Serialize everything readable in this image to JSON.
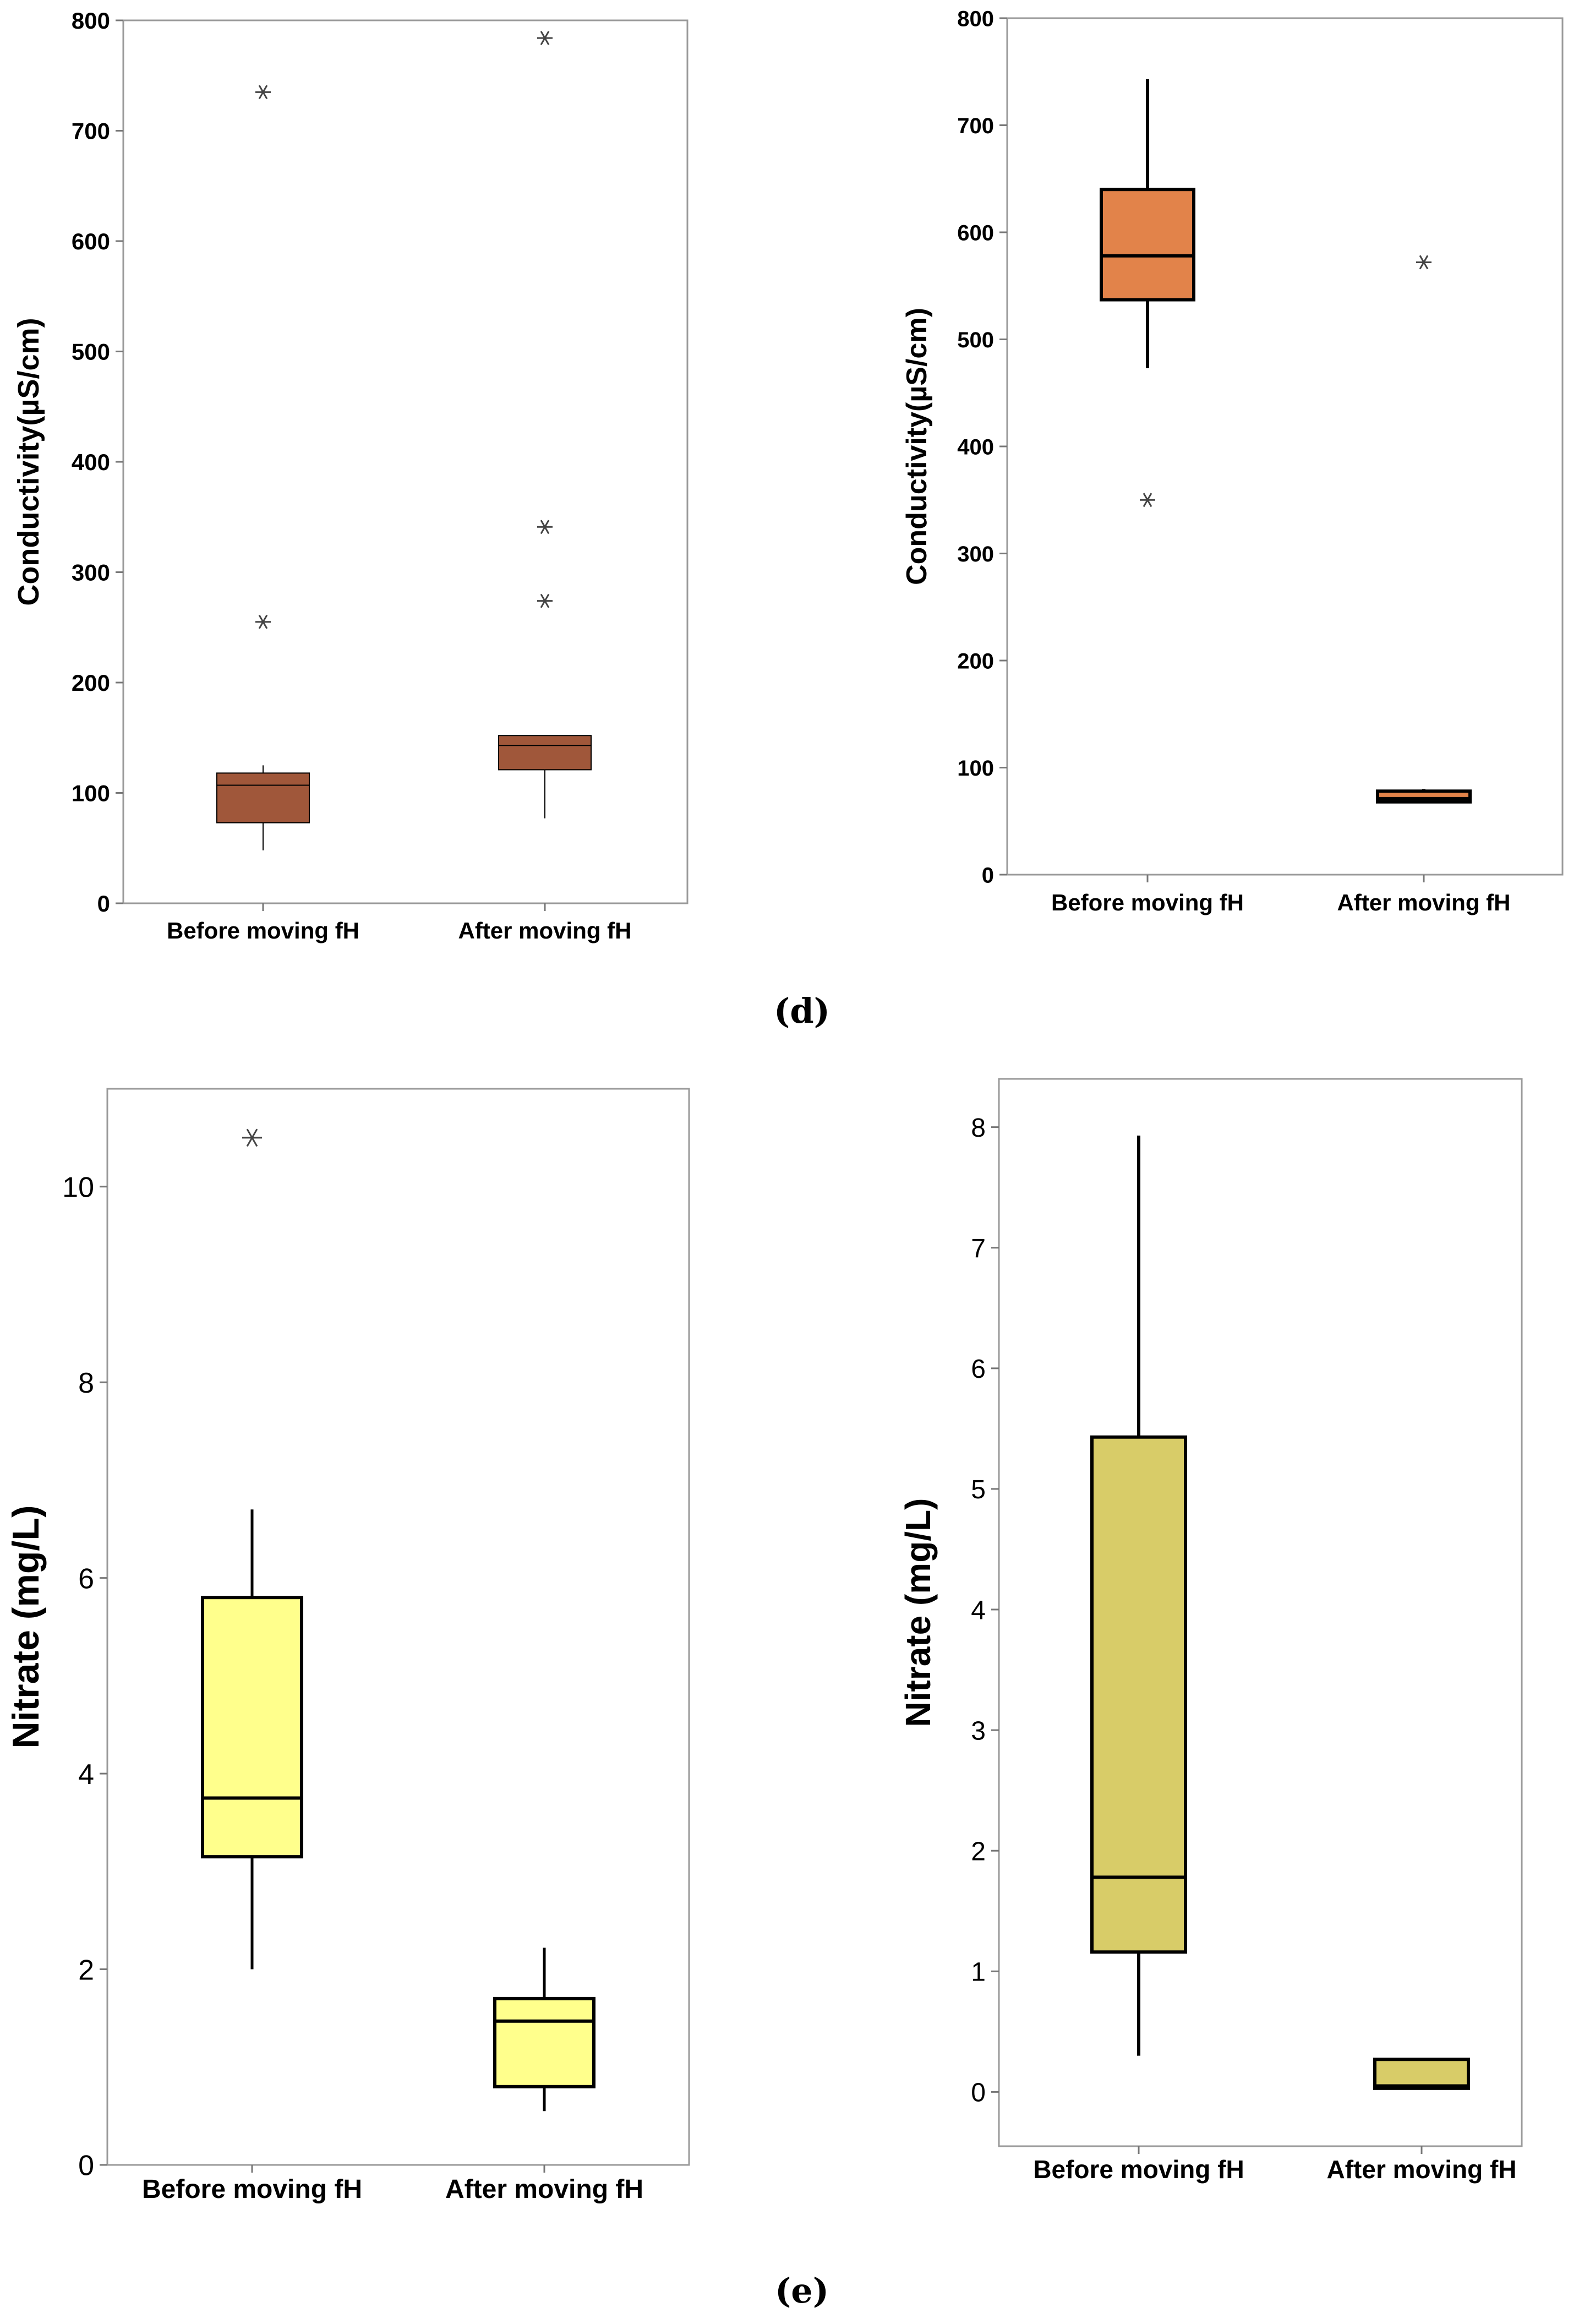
{
  "panel_labels": {
    "d": "(d)",
    "e": "(e)"
  },
  "chart_data": [
    {
      "type": "box",
      "panel": "d-left",
      "ylabel": "Conductivity(µS/cm)",
      "ylim": [
        0,
        800
      ],
      "yticks": [
        0,
        100,
        200,
        300,
        400,
        500,
        600,
        700,
        800
      ],
      "categories": [
        "Before moving fH",
        "After moving fH"
      ],
      "fill": "#A0573A",
      "boxes": [
        {
          "whisker_low": 48,
          "q1": 73,
          "median": 107,
          "q3": 118,
          "whisker_high": 125,
          "outliers": [
            735,
            255
          ]
        },
        {
          "whisker_low": 77,
          "q1": 121,
          "median": 143,
          "q3": 152,
          "whisker_high": 152,
          "outliers": [
            784,
            341,
            274
          ]
        }
      ]
    },
    {
      "type": "box",
      "panel": "d-right",
      "ylabel": "Conductivity(µS/cm)",
      "ylim": [
        0,
        800
      ],
      "yticks": [
        0,
        100,
        200,
        300,
        400,
        500,
        600,
        700,
        800
      ],
      "categories": [
        "Before moving fH",
        "After moving fH"
      ],
      "fill": "#E2834A",
      "boxes": [
        {
          "whisker_low": 473,
          "q1": 537,
          "median": 578,
          "q3": 640,
          "whisker_high": 743,
          "outliers": [
            350
          ]
        },
        {
          "whisker_low": 68,
          "q1": 68,
          "median": 71,
          "q3": 78,
          "whisker_high": 80,
          "outliers": [
            572
          ]
        }
      ]
    },
    {
      "type": "box",
      "panel": "e-left",
      "ylabel": "Nitrate (mg/L)",
      "ylim": [
        0,
        11
      ],
      "yticks": [
        0,
        2,
        4,
        6,
        8,
        10
      ],
      "categories": [
        "Before moving fH",
        "After moving fH"
      ],
      "fill": "#FFFF8C",
      "boxes": [
        {
          "whisker_low": 2.0,
          "q1": 3.15,
          "median": 3.75,
          "q3": 5.8,
          "whisker_high": 6.7,
          "outliers": [
            10.5
          ]
        },
        {
          "whisker_low": 0.55,
          "q1": 0.8,
          "median": 1.47,
          "q3": 1.7,
          "whisker_high": 2.22,
          "outliers": []
        }
      ]
    },
    {
      "type": "box",
      "panel": "e-right",
      "ylabel": "Nitrate (mg/L)",
      "ylim": [
        -0.45,
        8.4
      ],
      "yticks": [
        0,
        1,
        2,
        3,
        4,
        5,
        6,
        7,
        8
      ],
      "categories": [
        "Before moving fH",
        "After moving fH"
      ],
      "fill": "#D8CC68",
      "boxes": [
        {
          "whisker_low": 0.3,
          "q1": 1.16,
          "median": 1.78,
          "q3": 5.43,
          "whisker_high": 7.93,
          "outliers": []
        },
        {
          "whisker_low": 0.03,
          "q1": 0.03,
          "median": 0.05,
          "q3": 0.27,
          "whisker_high": 0.27,
          "outliers": []
        }
      ]
    }
  ]
}
